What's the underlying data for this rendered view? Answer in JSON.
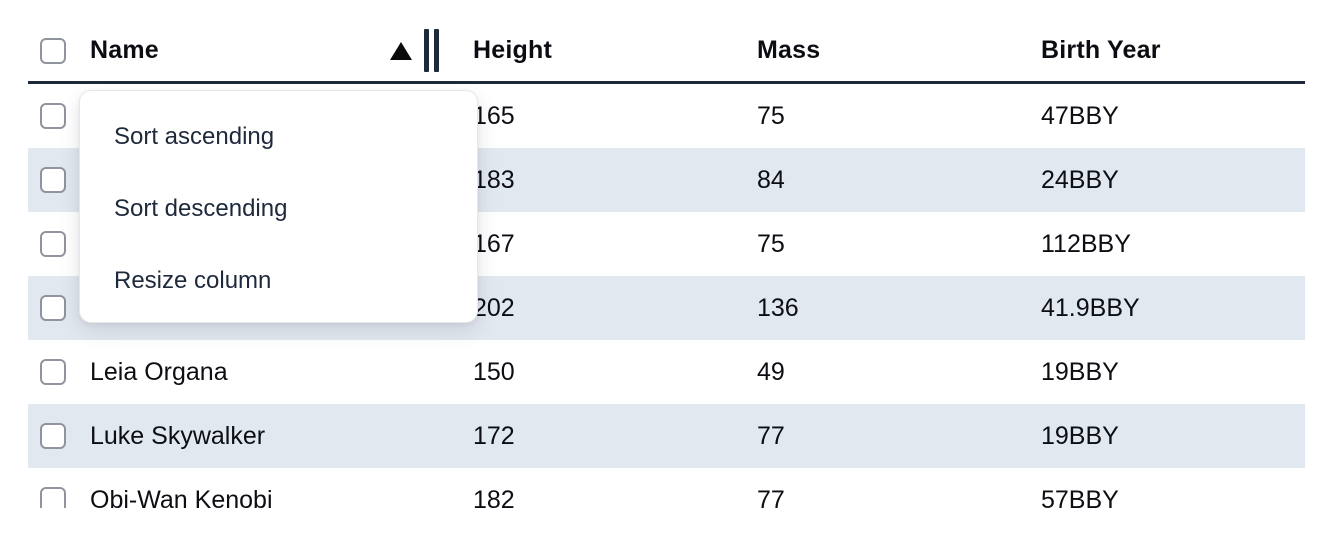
{
  "table": {
    "columns": [
      {
        "label": "Name"
      },
      {
        "label": "Height"
      },
      {
        "label": "Mass"
      },
      {
        "label": "Birth Year"
      }
    ],
    "sort": {
      "column": "Name",
      "direction": "ascending",
      "icon": "triangle-up"
    },
    "rows": [
      {
        "name": "",
        "height": "165",
        "mass": "75",
        "birth_year": "47BBY"
      },
      {
        "name": "",
        "height": "183",
        "mass": "84",
        "birth_year": "24BBY"
      },
      {
        "name": "",
        "height": "167",
        "mass": "75",
        "birth_year": "112BBY"
      },
      {
        "name": "",
        "height": "202",
        "mass": "136",
        "birth_year": "41.9BBY"
      },
      {
        "name": "Leia Organa",
        "height": "150",
        "mass": "49",
        "birth_year": "19BBY"
      },
      {
        "name": "Luke Skywalker",
        "height": "172",
        "mass": "77",
        "birth_year": "19BBY"
      },
      {
        "name": "Obi-Wan Kenobi",
        "height": "182",
        "mass": "77",
        "birth_year": "57BBY"
      }
    ]
  },
  "context_menu": {
    "items": [
      {
        "label": "Sort ascending"
      },
      {
        "label": "Sort descending"
      },
      {
        "label": "Resize column"
      }
    ]
  },
  "colors": {
    "row_stripe": "#e2e8f0",
    "header_border": "#1e293b",
    "menu_text": "#1e293b",
    "cell_text": "#0c0e13",
    "checkbox_border": "#8f949d"
  }
}
